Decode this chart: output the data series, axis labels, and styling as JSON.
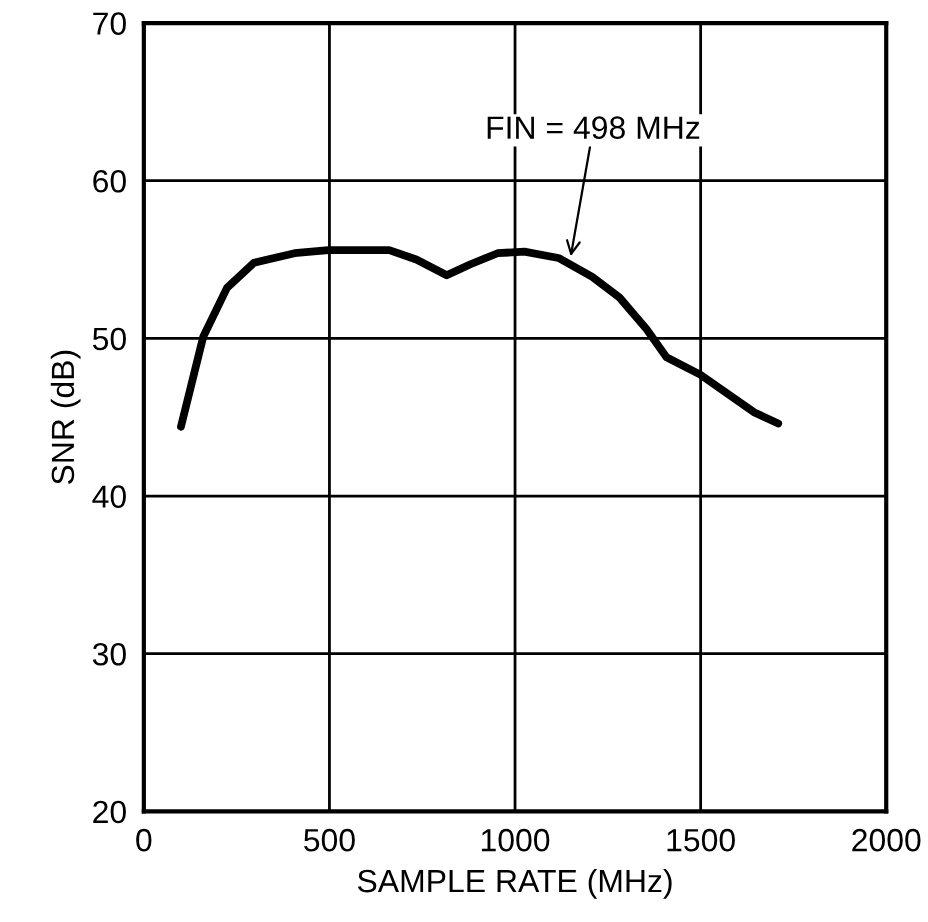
{
  "chart_data": {
    "type": "line",
    "xlabel": "SAMPLE RATE (MHz)",
    "ylabel": "SNR (dB)",
    "x": [
      100,
      160,
      224,
      297,
      406,
      497,
      661,
      734,
      816,
      880,
      953,
      1025,
      1117,
      1208,
      1281,
      1354,
      1408,
      1499,
      1645,
      1709
    ],
    "series": [
      {
        "color": "#000000",
        "values": [
          44.4,
          50.1,
          53.2,
          54.8,
          55.4,
          55.6,
          55.6,
          55.0,
          54.0,
          54.7,
          55.4,
          55.5,
          55.1,
          53.9,
          52.6,
          50.6,
          48.8,
          47.7,
          45.3,
          44.6
        ]
      }
    ],
    "xlim": [
      0,
      2000
    ],
    "ylim": [
      20,
      70
    ],
    "xticks": [
      0,
      500,
      1000,
      1500,
      2000
    ],
    "yticks": [
      20,
      30,
      40,
      50,
      60,
      70
    ],
    "grid": true,
    "annotations": [
      {
        "text": "FIN = 498 MHz",
        "x": 1150,
        "y": 55.2
      }
    ]
  }
}
